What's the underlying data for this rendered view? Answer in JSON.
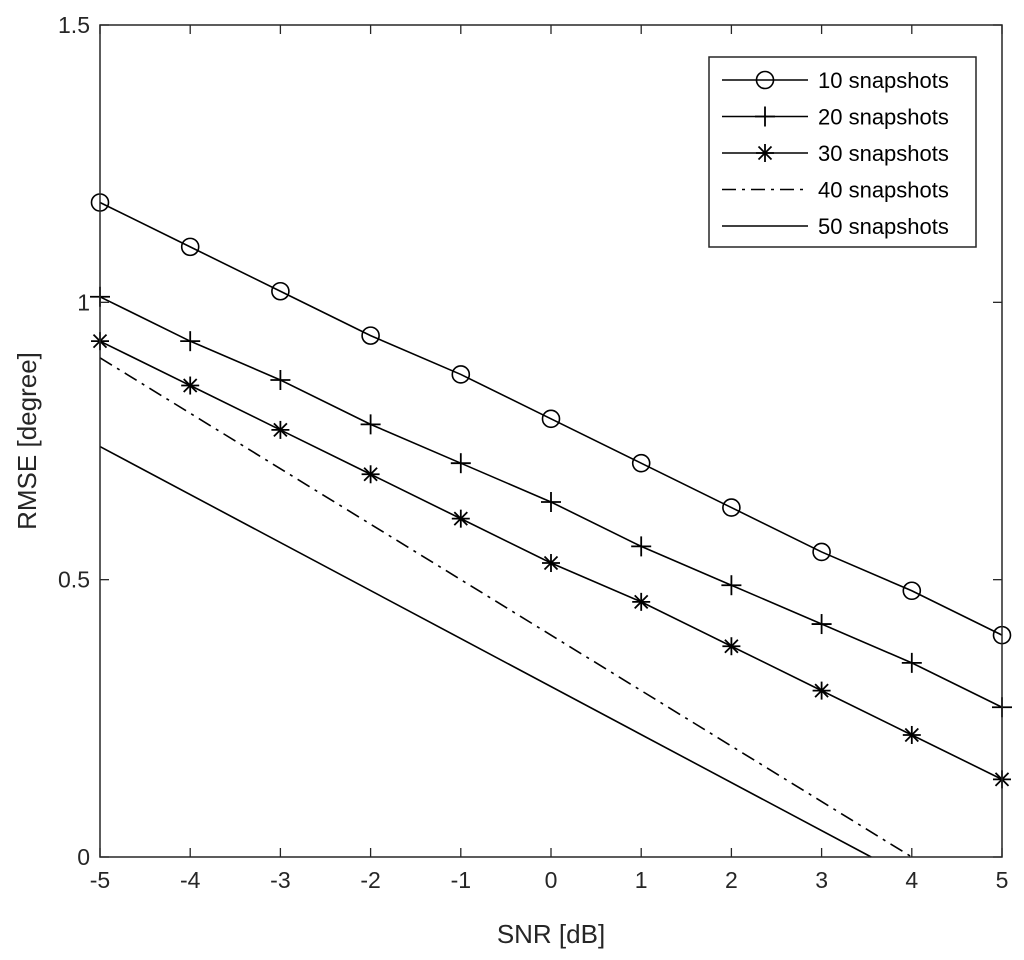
{
  "chart_data": {
    "type": "line",
    "xlabel": "SNR [dB]",
    "ylabel": "RMSE [degree]",
    "xlim": [
      -5,
      5
    ],
    "ylim": [
      0,
      1.5
    ],
    "x_ticks": [
      "-5",
      "-4",
      "-3",
      "-2",
      "-1",
      "0",
      "1",
      "2",
      "3",
      "4",
      "5"
    ],
    "y_ticks": [
      "0",
      "0.5",
      "1",
      "1.5"
    ],
    "grid": false,
    "legend_position": "top-right",
    "x": [
      -5,
      -4,
      -3,
      -2,
      -1,
      0,
      1,
      2,
      3,
      4,
      5
    ],
    "series": [
      {
        "name": "10 snapshots",
        "marker": "circle",
        "line_style": "solid",
        "values": [
          1.18,
          1.1,
          1.02,
          0.94,
          0.87,
          0.79,
          0.71,
          0.63,
          0.55,
          0.48,
          0.4
        ]
      },
      {
        "name": "20 snapshots",
        "marker": "plus",
        "line_style": "solid",
        "values": [
          1.01,
          0.93,
          0.86,
          0.78,
          0.71,
          0.64,
          0.56,
          0.49,
          0.42,
          0.35,
          0.27
        ]
      },
      {
        "name": "30 snapshots",
        "marker": "star",
        "line_style": "solid",
        "values": [
          0.93,
          0.85,
          0.77,
          0.69,
          0.61,
          0.53,
          0.46,
          0.38,
          0.3,
          0.22,
          0.14
        ]
      },
      {
        "name": "40 snapshots",
        "marker": "none",
        "line_style": "dashdot",
        "x": [
          -5,
          4
        ],
        "values": [
          0.9,
          0.0
        ]
      },
      {
        "name": "50 snapshots",
        "marker": "none",
        "line_style": "solid",
        "x": [
          -5,
          3.55
        ],
        "values": [
          0.74,
          0.0
        ]
      }
    ]
  }
}
